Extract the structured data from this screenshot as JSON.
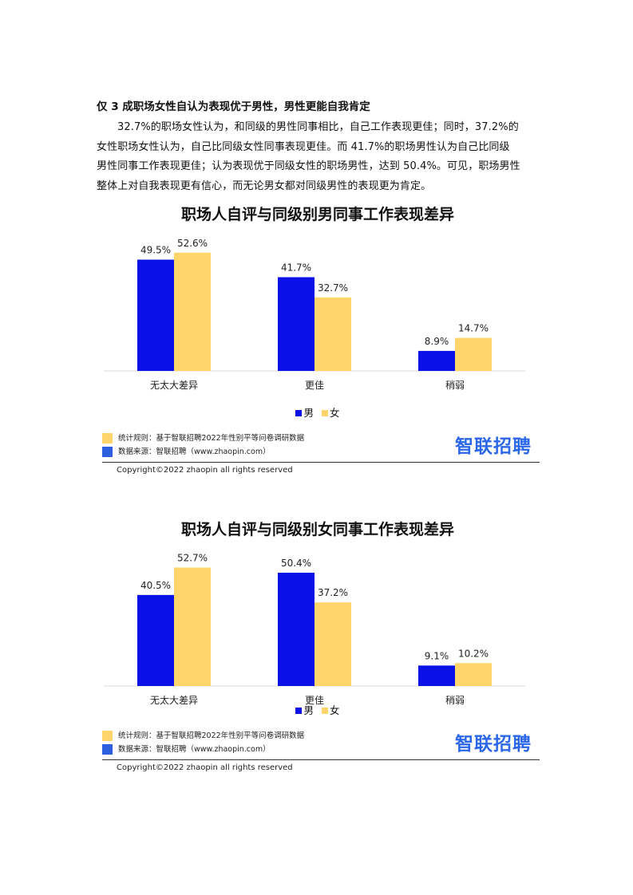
{
  "section": {
    "heading": "仅 3 成职场女性自认为表现优于男性，男性更能自我肯定",
    "paragraph_lines": [
      "32.7%的职场女性认为，和同级的男性同事相比，自己工作表现更佳；同时，37.2%的",
      "女性职场女性认为，自己比同级女性同事表现更佳。而 41.7%的职场男性认为自己比同级",
      "男性同事工作表现更佳；认为表现优于同级女性的职场男性，达到 50.4%。可见，职场男性",
      "整体上对自我表现更有信心，而无论男女都对同级男性的表现更为肯定。"
    ]
  },
  "colors": {
    "male": "#0a11e6",
    "female": "#ffd46b",
    "brand": "#2b67e8",
    "note_blue": "#2d5fe0"
  },
  "chart_data": [
    {
      "type": "bar",
      "title": "职场人自评与同级别男同事工作表现差异",
      "categories": [
        "无太大差异",
        "更佳",
        "稍弱"
      ],
      "series": [
        {
          "name": "男",
          "values": [
            49.5,
            41.7,
            8.9
          ]
        },
        {
          "name": "女",
          "values": [
            52.6,
            32.7,
            14.7
          ]
        }
      ],
      "data_labels": [
        [
          "49.5%",
          "41.7%",
          "8.9%"
        ],
        [
          "52.6%",
          "32.7%",
          "14.7%"
        ]
      ],
      "ylim": [
        0,
        55
      ],
      "legend": "bottom",
      "grid": false
    },
    {
      "type": "bar",
      "title": "职场人自评与同级别女同事工作表现差异",
      "categories": [
        "无太大差异",
        "更佳",
        "稍弱"
      ],
      "series": [
        {
          "name": "男",
          "values": [
            40.5,
            50.4,
            9.1
          ]
        },
        {
          "name": "女",
          "values": [
            52.7,
            37.2,
            10.2
          ]
        }
      ],
      "data_labels": [
        [
          "40.5%",
          "50.4%",
          "9.1%"
        ],
        [
          "52.7%",
          "37.2%",
          "10.2%"
        ]
      ],
      "ylim": [
        0,
        55
      ],
      "legend": "bottom",
      "grid": false
    }
  ],
  "footer": {
    "stats_rule": "统计规则：基于智联招聘2022年性别平等问卷调研数据",
    "data_source": "数据来源：智联招聘（www.zhaopin.com）",
    "brand": "智联招聘",
    "copyright": "Copyright©2022 zhaopin all rights reserved"
  }
}
